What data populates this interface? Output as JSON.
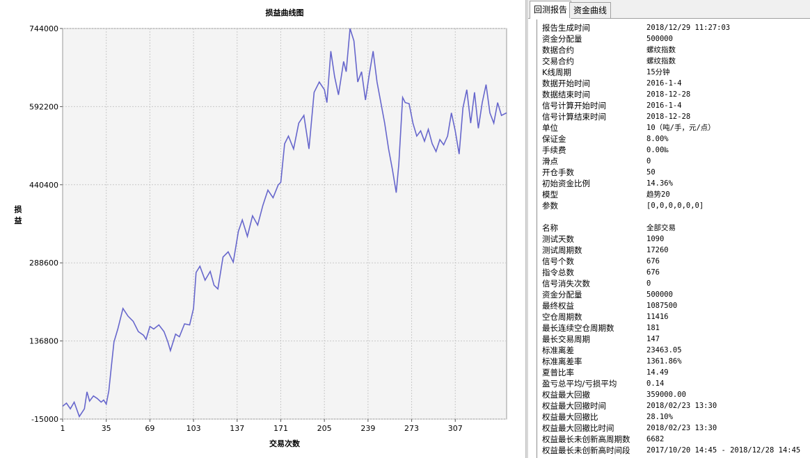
{
  "chart": {
    "title": "损益曲线图",
    "ylabel": "损益",
    "xlabel": "交易次数",
    "line_color": "#6666cc"
  },
  "chart_data": {
    "type": "line",
    "title": "损益曲线图",
    "xlabel": "交易次数",
    "ylabel": "损益",
    "x_ticks": [
      1,
      35,
      69,
      103,
      137,
      171,
      205,
      239,
      273,
      307
    ],
    "y_ticks": [
      -15000,
      136800,
      288600,
      440400,
      592200,
      744000
    ],
    "xlim": [
      1,
      347
    ],
    "ylim": [
      -15000,
      744000
    ],
    "grid": true,
    "series": [
      {
        "x": [
          1,
          4,
          7,
          10,
          14,
          18,
          20,
          22,
          25,
          28,
          31,
          33,
          35,
          37,
          39,
          41,
          44,
          48,
          52,
          56,
          60,
          64,
          66,
          69,
          72,
          76,
          80,
          83,
          85,
          89,
          92,
          96,
          100,
          103,
          105,
          108,
          112,
          116,
          119,
          122,
          126,
          130,
          134,
          138,
          141,
          145,
          149,
          153,
          157,
          161,
          165,
          169,
          171,
          174,
          177,
          181,
          185,
          189,
          193,
          197,
          201,
          205,
          207,
          210,
          213,
          216,
          220,
          222,
          225,
          228,
          231,
          234,
          237,
          240,
          243,
          246,
          249,
          252,
          255,
          258,
          261,
          263,
          266,
          268,
          271,
          274,
          277,
          280,
          283,
          286,
          289,
          292,
          295,
          298,
          301,
          304,
          307,
          310,
          313,
          316,
          319,
          322,
          325,
          328,
          331,
          334,
          337,
          340,
          343,
          347
        ],
        "y": [
          10000,
          16000,
          5000,
          18000,
          -10000,
          5000,
          38000,
          20000,
          30000,
          25000,
          18000,
          22000,
          14000,
          40000,
          88000,
          135000,
          160000,
          200000,
          185000,
          175000,
          155000,
          148000,
          140000,
          165000,
          160000,
          168000,
          155000,
          135000,
          118000,
          150000,
          145000,
          170000,
          168000,
          200000,
          270000,
          282000,
          255000,
          272000,
          245000,
          238000,
          300000,
          310000,
          290000,
          350000,
          372000,
          340000,
          380000,
          362000,
          400000,
          430000,
          415000,
          440000,
          445000,
          520000,
          535000,
          510000,
          560000,
          575000,
          510000,
          620000,
          640000,
          625000,
          600000,
          700000,
          650000,
          615000,
          680000,
          660000,
          744000,
          720000,
          640000,
          660000,
          605000,
          655000,
          700000,
          640000,
          600000,
          560000,
          510000,
          470000,
          425000,
          480000,
          610000,
          600000,
          598000,
          560000,
          535000,
          545000,
          525000,
          548000,
          520000,
          505000,
          528000,
          518000,
          535000,
          580000,
          545000,
          500000,
          590000,
          625000,
          560000,
          620000,
          550000,
          600000,
          635000,
          580000,
          560000,
          600000,
          575000,
          580000
        ]
      }
    ]
  },
  "tabs": [
    {
      "label": "回测报告",
      "active": true
    },
    {
      "label": "资金曲线",
      "active": false
    }
  ],
  "report": [
    {
      "key": "报告生成时间",
      "value": "2018/12/29 11:27:03"
    },
    {
      "key": "资金分配量",
      "value": "500000"
    },
    {
      "key": "数据合约",
      "value": "螺纹指数"
    },
    {
      "key": "交易合约",
      "value": "螺纹指数"
    },
    {
      "key": "K线周期",
      "value": "15分钟"
    },
    {
      "key": "数据开始时间",
      "value": "2016-1-4"
    },
    {
      "key": "数据结束时间",
      "value": "2018-12-28"
    },
    {
      "key": "信号计算开始时间",
      "value": "2016-1-4"
    },
    {
      "key": "信号计算结束时间",
      "value": "2018-12-28"
    },
    {
      "key": "单位",
      "value": "10（吨/手，元/点）"
    },
    {
      "key": "保证金",
      "value": "8.00%"
    },
    {
      "key": "手续费",
      "value": "0.00‰"
    },
    {
      "key": "滑点",
      "value": "0"
    },
    {
      "key": "开仓手数",
      "value": "50"
    },
    {
      "key": "初始资金比例",
      "value": "14.36%"
    },
    {
      "key": "模型",
      "value": "趋势20"
    },
    {
      "key": "参数",
      "value": "[0,0,0,0,0,0]"
    },
    {
      "key": "",
      "value": ""
    },
    {
      "key": "名称",
      "value": "全部交易"
    },
    {
      "key": "测试天数",
      "value": "1090"
    },
    {
      "key": "测试周期数",
      "value": "17260"
    },
    {
      "key": "信号个数",
      "value": "676"
    },
    {
      "key": "指令总数",
      "value": "676"
    },
    {
      "key": "信号消失次数",
      "value": "0"
    },
    {
      "key": "资金分配量",
      "value": "500000"
    },
    {
      "key": "最终权益",
      "value": "1087500"
    },
    {
      "key": "空仓周期数",
      "value": "11416"
    },
    {
      "key": "最长连续空仓周期数",
      "value": "181"
    },
    {
      "key": "最长交易周期",
      "value": "147"
    },
    {
      "key": "标准离差",
      "value": "23463.05"
    },
    {
      "key": "标准离差率",
      "value": "1361.86%"
    },
    {
      "key": "夏普比率",
      "value": "14.49"
    },
    {
      "key": "盈亏总平均/亏损平均",
      "value": "0.14"
    },
    {
      "key": "权益最大回撤",
      "value": "359000.00"
    },
    {
      "key": "权益最大回撤时间",
      "value": "2018/02/23 13:30"
    },
    {
      "key": "权益最大回撤比",
      "value": "28.10%"
    },
    {
      "key": "权益最大回撤比时间",
      "value": "2018/02/23 13:30"
    },
    {
      "key": "权益最长未创新高周期数",
      "value": "6682"
    },
    {
      "key": "权益最长未创新高时间段",
      "value": "2017/10/20 14:45 - 2018/12/28 14:45"
    }
  ]
}
